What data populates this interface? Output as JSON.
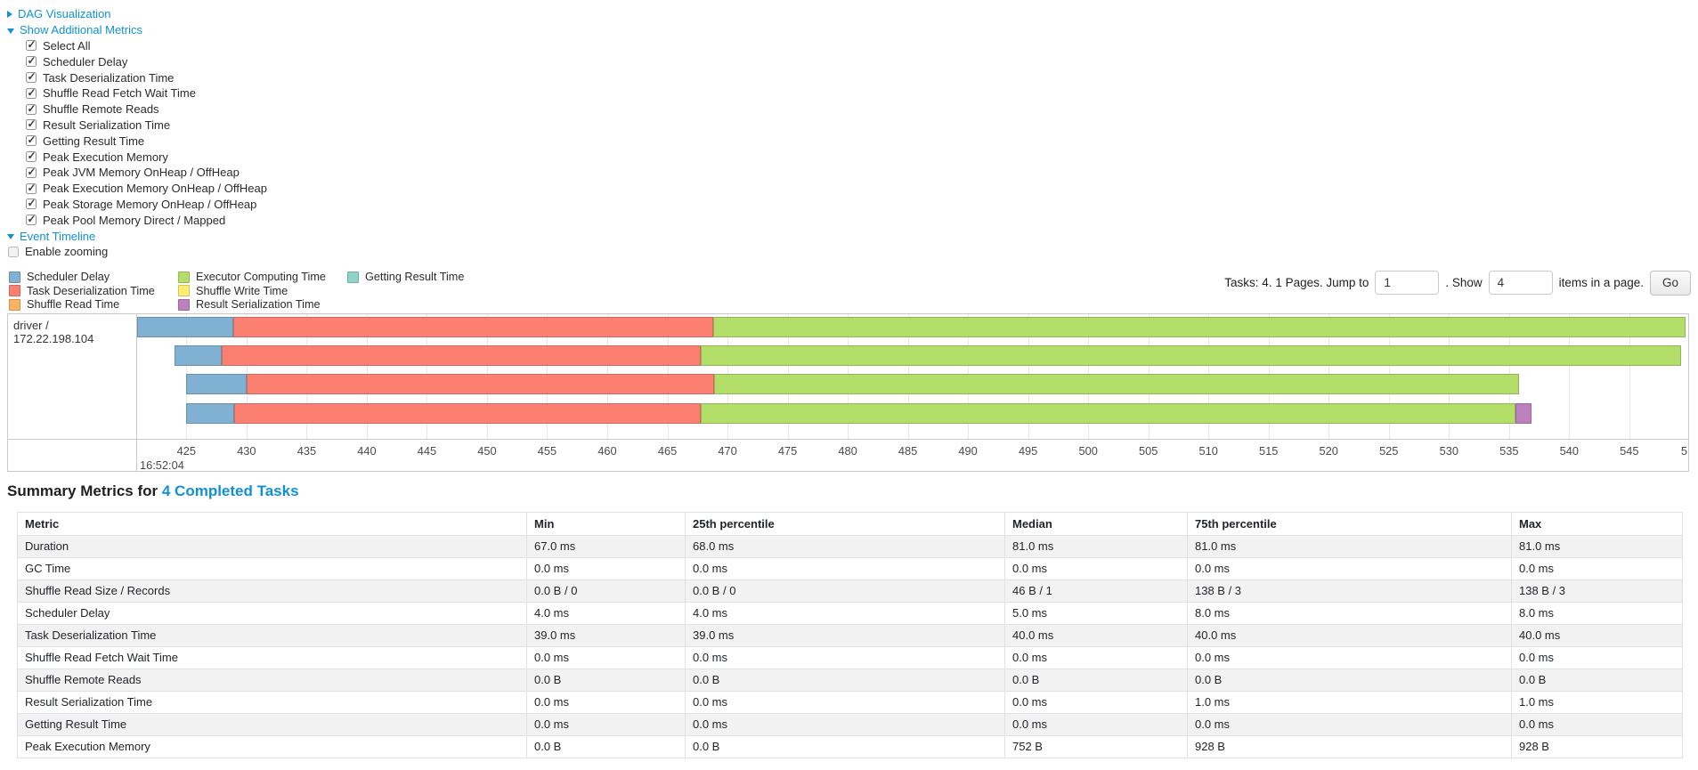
{
  "controls": {
    "dag": {
      "label": "DAG Visualization",
      "state": "collapsed"
    },
    "metrics": {
      "label": "Show Additional Metrics",
      "state": "expanded"
    },
    "metric_checkboxes": [
      {
        "label": "Select All",
        "checked": true
      },
      {
        "label": "Scheduler Delay",
        "checked": true
      },
      {
        "label": "Task Deserialization Time",
        "checked": true
      },
      {
        "label": "Shuffle Read Fetch Wait Time",
        "checked": true
      },
      {
        "label": "Shuffle Remote Reads",
        "checked": true
      },
      {
        "label": "Result Serialization Time",
        "checked": true
      },
      {
        "label": "Getting Result Time",
        "checked": true
      },
      {
        "label": "Peak Execution Memory",
        "checked": true
      },
      {
        "label": "Peak JVM Memory OnHeap / OffHeap",
        "checked": true
      },
      {
        "label": "Peak Execution Memory OnHeap / OffHeap",
        "checked": true
      },
      {
        "label": "Peak Storage Memory OnHeap / OffHeap",
        "checked": true
      },
      {
        "label": "Peak Pool Memory Direct / Mapped",
        "checked": true
      }
    ],
    "timeline": {
      "label": "Event Timeline",
      "state": "expanded"
    },
    "enable_zooming": {
      "label": "Enable zooming",
      "checked": false
    }
  },
  "legend": {
    "columns": [
      [
        {
          "label": "Scheduler Delay",
          "key": "scheduler-delay"
        },
        {
          "label": "Task Deserialization Time",
          "key": "task-deserialization-time"
        },
        {
          "label": "Shuffle Read Time",
          "key": "shuffle-read-time"
        }
      ],
      [
        {
          "label": "Executor Computing Time",
          "key": "executor-computing-time"
        },
        {
          "label": "Shuffle Write Time",
          "key": "shuffle-write-time"
        },
        {
          "label": "Result Serialization Time",
          "key": "result-serialization-time"
        }
      ],
      [
        {
          "label": "Getting Result Time",
          "key": "getting-result-time"
        }
      ]
    ]
  },
  "pagination": {
    "prefix_text": "Tasks: 4. 1 Pages. Jump to",
    "jump_value": "1",
    "show_text": ". Show",
    "show_value": "4",
    "suffix_text": "items in a page.",
    "go_label": "Go"
  },
  "chart_data": {
    "type": "timeline",
    "row_label": "driver / 172.22.198.104",
    "colors": {
      "scheduler-delay": "#80B1D3",
      "task-deserialization-time": "#FB8072",
      "shuffle-read-time": "#FDB462",
      "executor-computing-time": "#B3DE69",
      "shuffle-write-time": "#FFED6F",
      "result-serialization-time": "#BC80BD",
      "getting-result-time": "#8DD3C7"
    },
    "axis": {
      "min": 420.9,
      "max": 549.9,
      "ticks": [
        425,
        430,
        435,
        440,
        445,
        450,
        455,
        460,
        465,
        470,
        475,
        480,
        485,
        490,
        495,
        500,
        505,
        510,
        515,
        520,
        525,
        530,
        535,
        540,
        545
      ],
      "partial_right_label": "5",
      "time_label": "16:52:04"
    },
    "tasks": [
      {
        "segments": [
          {
            "type": "scheduler-delay",
            "start": 420.9,
            "end": 428.9
          },
          {
            "type": "task-deserialization-time",
            "start": 428.9,
            "end": 468.8
          },
          {
            "type": "executor-computing-time",
            "start": 468.8,
            "end": 549.7
          }
        ]
      },
      {
        "segments": [
          {
            "type": "scheduler-delay",
            "start": 424.0,
            "end": 427.9
          },
          {
            "type": "task-deserialization-time",
            "start": 427.9,
            "end": 467.8
          },
          {
            "type": "executor-computing-time",
            "start": 467.8,
            "end": 549.3
          }
        ]
      },
      {
        "segments": [
          {
            "type": "scheduler-delay",
            "start": 425.0,
            "end": 430.0
          },
          {
            "type": "task-deserialization-time",
            "start": 430.0,
            "end": 468.9
          },
          {
            "type": "executor-computing-time",
            "start": 468.9,
            "end": 535.8
          }
        ]
      },
      {
        "segments": [
          {
            "type": "scheduler-delay",
            "start": 425.0,
            "end": 429.0
          },
          {
            "type": "task-deserialization-time",
            "start": 429.0,
            "end": 467.8
          },
          {
            "type": "executor-computing-time",
            "start": 467.8,
            "end": 535.5
          },
          {
            "type": "result-serialization-time",
            "start": 535.5,
            "end": 536.9
          }
        ]
      }
    ]
  },
  "summary": {
    "title_prefix": "Summary Metrics for",
    "title_link": "4 Completed Tasks",
    "table": {
      "headers": [
        "Metric",
        "Min",
        "25th percentile",
        "Median",
        "75th percentile",
        "Max"
      ],
      "rows": [
        {
          "metric": "Duration",
          "values": [
            "67.0 ms",
            "68.0 ms",
            "81.0 ms",
            "81.0 ms",
            "81.0 ms"
          ]
        },
        {
          "metric": "GC Time",
          "values": [
            "0.0 ms",
            "0.0 ms",
            "0.0 ms",
            "0.0 ms",
            "0.0 ms"
          ]
        },
        {
          "metric": "Shuffle Read Size / Records",
          "values": [
            "0.0 B / 0",
            "0.0 B / 0",
            "46 B / 1",
            "138 B / 3",
            "138 B / 3"
          ]
        },
        {
          "metric": "Scheduler Delay",
          "values": [
            "4.0 ms",
            "4.0 ms",
            "5.0 ms",
            "8.0 ms",
            "8.0 ms"
          ]
        },
        {
          "metric": "Task Deserialization Time",
          "values": [
            "39.0 ms",
            "39.0 ms",
            "40.0 ms",
            "40.0 ms",
            "40.0 ms"
          ]
        },
        {
          "metric": "Shuffle Read Fetch Wait Time",
          "values": [
            "0.0 ms",
            "0.0 ms",
            "0.0 ms",
            "0.0 ms",
            "0.0 ms"
          ]
        },
        {
          "metric": "Shuffle Remote Reads",
          "values": [
            "0.0 B",
            "0.0 B",
            "0.0 B",
            "0.0 B",
            "0.0 B"
          ]
        },
        {
          "metric": "Result Serialization Time",
          "values": [
            "0.0 ms",
            "0.0 ms",
            "0.0 ms",
            "1.0 ms",
            "1.0 ms"
          ]
        },
        {
          "metric": "Getting Result Time",
          "values": [
            "0.0 ms",
            "0.0 ms",
            "0.0 ms",
            "0.0 ms",
            "0.0 ms"
          ]
        },
        {
          "metric": "Peak Execution Memory",
          "values": [
            "0.0 B",
            "0.0 B",
            "752 B",
            "928 B",
            "928 B"
          ]
        }
      ]
    }
  }
}
